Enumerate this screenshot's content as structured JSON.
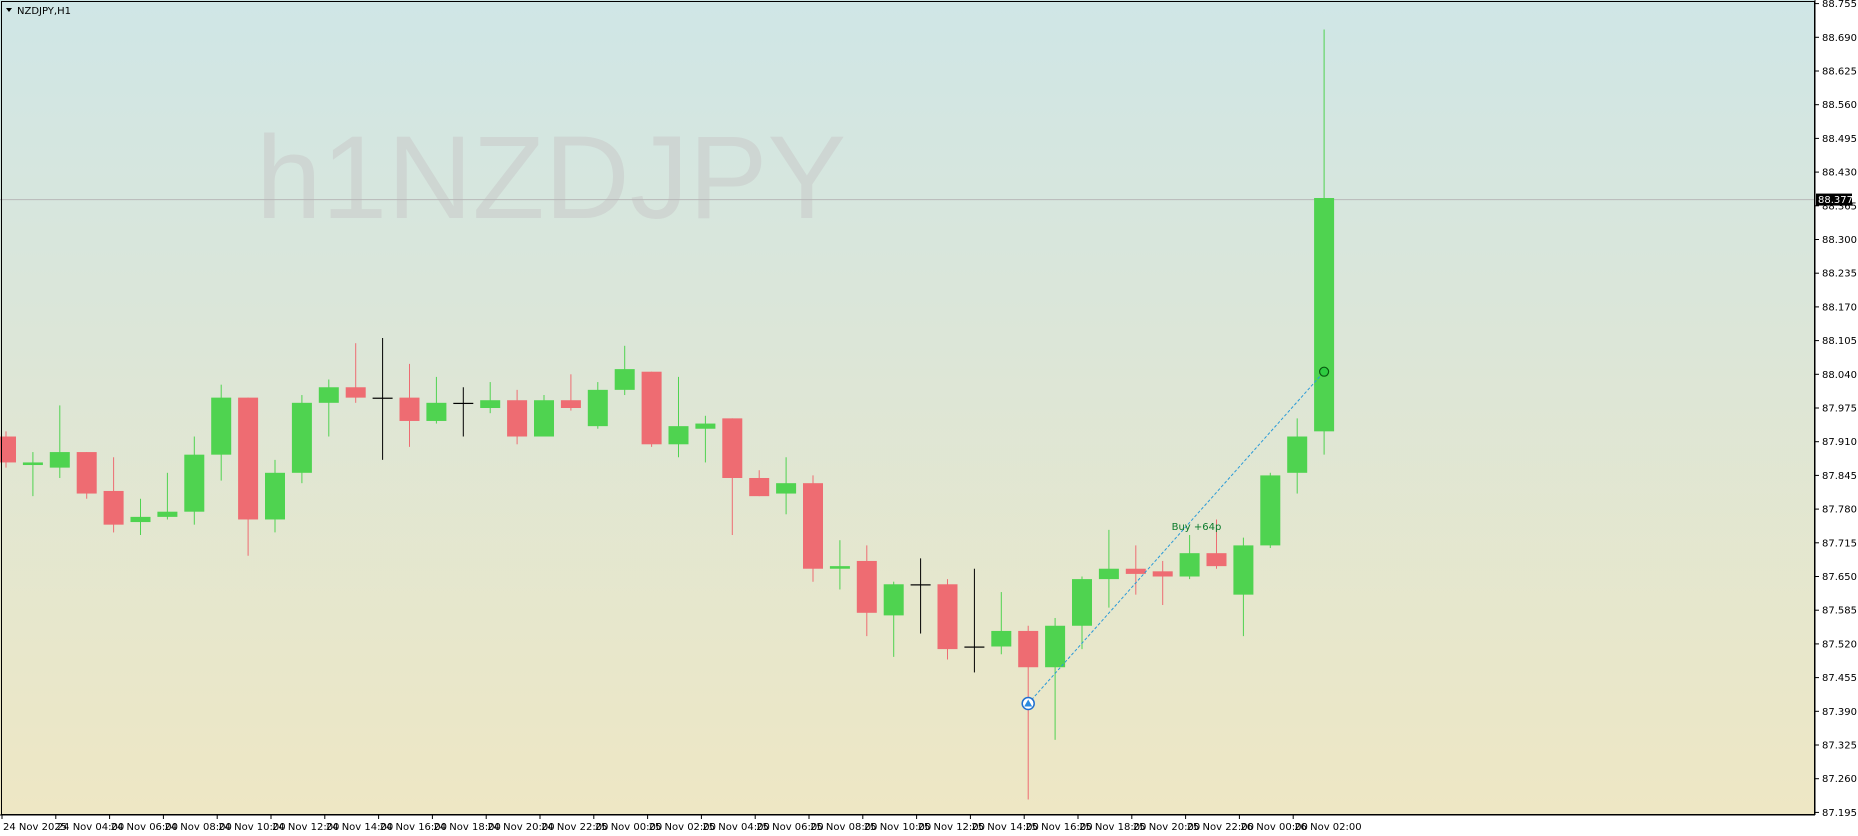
{
  "window": {
    "title": "NZDJPY,H1"
  },
  "watermark": "h1NZDJPY",
  "colors": {
    "bg_top": "#cfe6e6",
    "bg_bottom": "#eee7c4",
    "bull": "#4fd350",
    "bear": "#ee6c72",
    "doji": "#000000",
    "axis": "#000000",
    "grid_line": "#b8b8b8",
    "signal_line": "#2a9ad8"
  },
  "chart_data": {
    "type": "candlestick",
    "symbol": "NZDJPY",
    "timeframe": "H1",
    "ylim": [
      87.19,
      88.76
    ],
    "y_ticks": [
      "88.755",
      "88.690",
      "88.625",
      "88.560",
      "88.495",
      "88.430",
      "88.365",
      "88.300",
      "88.235",
      "88.170",
      "88.105",
      "88.040",
      "87.975",
      "87.910",
      "87.845",
      "87.780",
      "87.715",
      "87.650",
      "87.585",
      "87.520",
      "87.455",
      "87.390",
      "87.325",
      "87.260",
      "87.195"
    ],
    "current_price": "88.377",
    "x_labels": [
      "24 Nov 2025",
      "24 Nov 04:00",
      "24 Nov 06:00",
      "24 Nov 08:00",
      "24 Nov 10:00",
      "24 Nov 12:00",
      "24 Nov 14:00",
      "24 Nov 16:00",
      "24 Nov 18:00",
      "24 Nov 20:00",
      "24 Nov 22:00",
      "25 Nov 00:00",
      "25 Nov 02:00",
      "25 Nov 04:00",
      "25 Nov 06:00",
      "25 Nov 08:00",
      "25 Nov 10:00",
      "25 Nov 12:00",
      "25 Nov 14:00",
      "25 Nov 16:00",
      "25 Nov 18:00",
      "25 Nov 20:00",
      "25 Nov 22:00",
      "26 Nov 00:00",
      "26 Nov 02:00"
    ],
    "candles": [
      {
        "o": 87.92,
        "h": 87.93,
        "l": 87.86,
        "c": 87.87
      },
      {
        "o": 87.865,
        "h": 87.89,
        "l": 87.805,
        "c": 87.87
      },
      {
        "o": 87.86,
        "h": 87.98,
        "l": 87.84,
        "c": 87.89
      },
      {
        "o": 87.89,
        "h": 87.89,
        "l": 87.8,
        "c": 87.81
      },
      {
        "o": 87.815,
        "h": 87.88,
        "l": 87.735,
        "c": 87.75
      },
      {
        "o": 87.755,
        "h": 87.8,
        "l": 87.73,
        "c": 87.765
      },
      {
        "o": 87.765,
        "h": 87.85,
        "l": 87.76,
        "c": 87.775
      },
      {
        "o": 87.775,
        "h": 87.92,
        "l": 87.75,
        "c": 87.885
      },
      {
        "o": 87.885,
        "h": 88.02,
        "l": 87.835,
        "c": 87.995
      },
      {
        "o": 87.995,
        "h": 87.995,
        "l": 87.69,
        "c": 87.76
      },
      {
        "o": 87.76,
        "h": 87.875,
        "l": 87.735,
        "c": 87.85
      },
      {
        "o": 87.85,
        "h": 88.0,
        "l": 87.83,
        "c": 87.985
      },
      {
        "o": 87.985,
        "h": 88.03,
        "l": 87.92,
        "c": 88.015
      },
      {
        "o": 88.015,
        "h": 88.1,
        "l": 87.985,
        "c": 87.995
      },
      {
        "o": 87.995,
        "h": 88.11,
        "l": 87.875,
        "c": 87.995
      },
      {
        "o": 87.995,
        "h": 88.06,
        "l": 87.9,
        "c": 87.95
      },
      {
        "o": 87.95,
        "h": 88.035,
        "l": 87.945,
        "c": 87.985
      },
      {
        "o": 87.985,
        "h": 88.015,
        "l": 87.92,
        "c": 87.985
      },
      {
        "o": 87.975,
        "h": 88.025,
        "l": 87.965,
        "c": 87.99
      },
      {
        "o": 87.99,
        "h": 88.01,
        "l": 87.905,
        "c": 87.92
      },
      {
        "o": 87.92,
        "h": 88.0,
        "l": 87.92,
        "c": 87.99
      },
      {
        "o": 87.99,
        "h": 88.04,
        "l": 87.97,
        "c": 87.975
      },
      {
        "o": 87.94,
        "h": 88.025,
        "l": 87.935,
        "c": 88.01
      },
      {
        "o": 88.01,
        "h": 88.095,
        "l": 88.0,
        "c": 88.05
      },
      {
        "o": 88.045,
        "h": 88.045,
        "l": 87.9,
        "c": 87.905
      },
      {
        "o": 87.905,
        "h": 88.035,
        "l": 87.88,
        "c": 87.94
      },
      {
        "o": 87.935,
        "h": 87.96,
        "l": 87.87,
        "c": 87.945
      },
      {
        "o": 87.955,
        "h": 87.955,
        "l": 87.73,
        "c": 87.84
      },
      {
        "o": 87.84,
        "h": 87.855,
        "l": 87.805,
        "c": 87.805
      },
      {
        "o": 87.81,
        "h": 87.88,
        "l": 87.77,
        "c": 87.83
      },
      {
        "o": 87.83,
        "h": 87.845,
        "l": 87.64,
        "c": 87.665
      },
      {
        "o": 87.665,
        "h": 87.72,
        "l": 87.625,
        "c": 87.67
      },
      {
        "o": 87.68,
        "h": 87.71,
        "l": 87.535,
        "c": 87.58
      },
      {
        "o": 87.575,
        "h": 87.64,
        "l": 87.495,
        "c": 87.635
      },
      {
        "o": 87.635,
        "h": 87.685,
        "l": 87.54,
        "c": 87.635
      },
      {
        "o": 87.635,
        "h": 87.645,
        "l": 87.49,
        "c": 87.51
      },
      {
        "o": 87.515,
        "h": 87.665,
        "l": 87.465,
        "c": 87.515
      },
      {
        "o": 87.515,
        "h": 87.62,
        "l": 87.5,
        "c": 87.545
      },
      {
        "o": 87.545,
        "h": 87.555,
        "l": 87.22,
        "c": 87.475
      },
      {
        "o": 87.475,
        "h": 87.57,
        "l": 87.335,
        "c": 87.555
      },
      {
        "o": 87.555,
        "h": 87.65,
        "l": 87.51,
        "c": 87.645
      },
      {
        "o": 87.645,
        "h": 87.74,
        "l": 87.59,
        "c": 87.665
      },
      {
        "o": 87.665,
        "h": 87.71,
        "l": 87.615,
        "c": 87.655
      },
      {
        "o": 87.66,
        "h": 87.68,
        "l": 87.595,
        "c": 87.65
      },
      {
        "o": 87.65,
        "h": 87.73,
        "l": 87.645,
        "c": 87.695
      },
      {
        "o": 87.695,
        "h": 87.76,
        "l": 87.665,
        "c": 87.67
      },
      {
        "o": 87.615,
        "h": 87.725,
        "l": 87.535,
        "c": 87.71
      },
      {
        "o": 87.71,
        "h": 87.85,
        "l": 87.705,
        "c": 87.845
      },
      {
        "o": 87.85,
        "h": 87.955,
        "l": 87.81,
        "c": 87.92
      },
      {
        "o": 87.93,
        "h": 88.705,
        "l": 87.885,
        "c": 88.38
      }
    ],
    "signal": {
      "label": "Buy +64p",
      "entry_index": 38,
      "entry_price": 87.405,
      "exit_index": 49,
      "exit_price": 88.045
    }
  }
}
